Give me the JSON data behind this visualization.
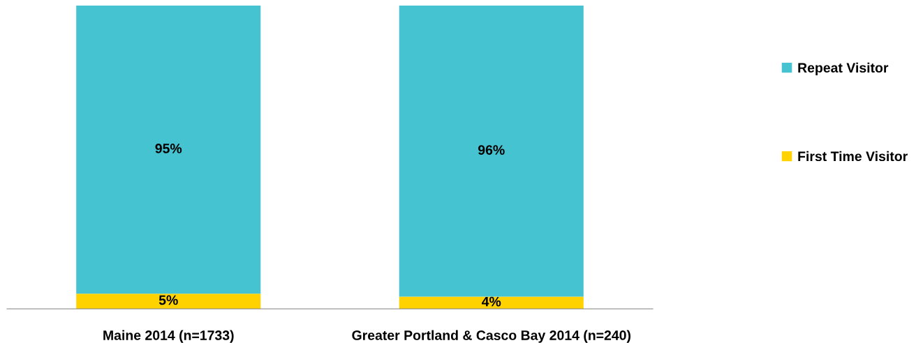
{
  "chart_data": {
    "type": "bar",
    "stacked": true,
    "categories": [
      "Maine 2014 (n=1733)",
      "Greater Portland & Casco Bay 2014 (n=240)"
    ],
    "series": [
      {
        "name": "First Time Visitor",
        "color": "#ffd200",
        "values": [
          5,
          4
        ],
        "value_labels": [
          "5%",
          "4%"
        ]
      },
      {
        "name": "Repeat Visitor",
        "color": "#46c3d1",
        "values": [
          95,
          96
        ],
        "value_labels": [
          "95%",
          "96%"
        ]
      }
    ],
    "ylim": [
      0,
      100
    ],
    "tick_labels": "x",
    "legend": "right",
    "grid": false
  }
}
